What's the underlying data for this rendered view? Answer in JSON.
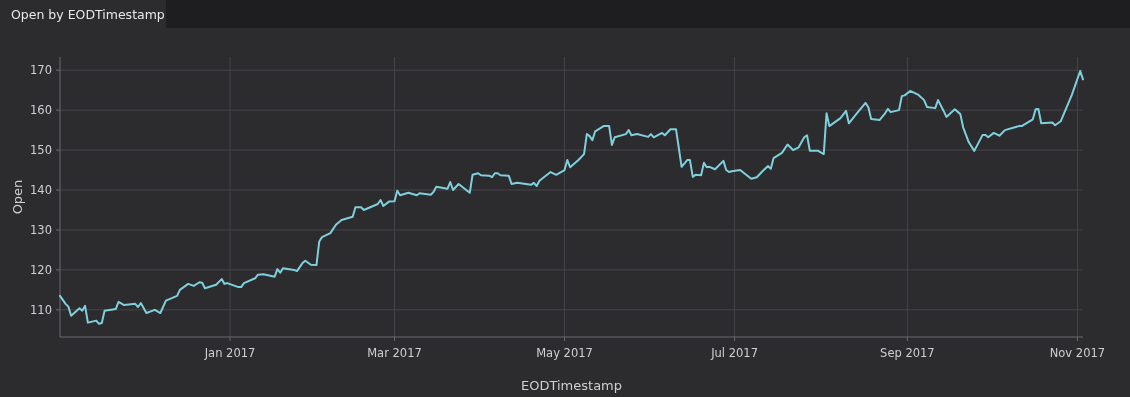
{
  "chart_data": {
    "type": "line",
    "title": "Open by EODTimestamp",
    "xlabel": "EODTimestamp",
    "ylabel": "Open",
    "color": "#7fd0dc",
    "grid": true,
    "marker": "none",
    "line_style": "solid",
    "xlim": [
      "2016-11-01",
      "2017-11-03"
    ],
    "ylim": [
      103.2,
      173.3
    ],
    "xticks": [
      {
        "value": "2017-01-01",
        "label": "Jan 2017"
      },
      {
        "value": "2017-03-01",
        "label": "Mar 2017"
      },
      {
        "value": "2017-05-01",
        "label": "May 2017"
      },
      {
        "value": "2017-07-01",
        "label": "Jul 2017"
      },
      {
        "value": "2017-09-01",
        "label": "Sep 2017"
      },
      {
        "value": "2017-11-01",
        "label": "Nov 2017"
      }
    ],
    "yticks": [
      110,
      120,
      130,
      140,
      150,
      160,
      170
    ],
    "x": [
      "2016-11-01",
      "2016-11-03",
      "2016-11-04",
      "2016-11-05",
      "2016-11-08",
      "2016-11-09",
      "2016-11-10",
      "2016-11-11",
      "2016-11-14",
      "2016-11-15",
      "2016-11-16",
      "2016-11-17",
      "2016-11-21",
      "2016-11-22",
      "2016-11-24",
      "2016-11-28",
      "2016-11-29",
      "2016-11-30",
      "2016-12-02",
      "2016-12-05",
      "2016-12-07",
      "2016-12-09",
      "2016-12-13",
      "2016-12-14",
      "2016-12-17",
      "2016-12-19",
      "2016-12-21",
      "2016-12-22",
      "2016-12-23",
      "2016-12-27",
      "2016-12-29",
      "2016-12-30",
      "2016-12-31",
      "2017-01-04",
      "2017-01-05",
      "2017-01-06",
      "2017-01-10",
      "2017-01-11",
      "2017-01-13",
      "2017-01-17",
      "2017-01-18",
      "2017-01-19",
      "2017-01-20",
      "2017-01-24",
      "2017-01-25",
      "2017-01-27",
      "2017-01-28",
      "2017-01-30",
      "2017-02-01",
      "2017-02-02",
      "2017-02-03",
      "2017-02-06",
      "2017-02-08",
      "2017-02-10",
      "2017-02-14",
      "2017-02-15",
      "2017-02-17",
      "2017-02-18",
      "2017-02-23",
      "2017-02-24",
      "2017-02-25",
      "2017-02-27",
      "2017-03-01",
      "2017-03-02",
      "2017-03-03",
      "2017-03-06",
      "2017-03-09",
      "2017-03-10",
      "2017-03-14",
      "2017-03-15",
      "2017-03-16",
      "2017-03-20",
      "2017-03-21",
      "2017-03-22",
      "2017-03-24",
      "2017-03-28",
      "2017-03-29",
      "2017-03-31",
      "2017-04-01",
      "2017-04-04",
      "2017-04-05",
      "2017-04-06",
      "2017-04-07",
      "2017-04-08",
      "2017-04-11",
      "2017-04-12",
      "2017-04-14",
      "2017-04-19",
      "2017-04-20",
      "2017-04-21",
      "2017-04-22",
      "2017-04-26",
      "2017-04-28",
      "2017-05-01",
      "2017-05-02",
      "2017-05-03",
      "2017-05-06",
      "2017-05-08",
      "2017-05-09",
      "2017-05-10",
      "2017-05-11",
      "2017-05-12",
      "2017-05-15",
      "2017-05-17",
      "2017-05-18",
      "2017-05-19",
      "2017-05-23",
      "2017-05-24",
      "2017-05-25",
      "2017-05-27",
      "2017-05-31",
      "2017-06-01",
      "2017-06-02",
      "2017-06-05",
      "2017-06-06",
      "2017-06-08",
      "2017-06-10",
      "2017-06-12",
      "2017-06-14",
      "2017-06-15",
      "2017-06-16",
      "2017-06-17",
      "2017-06-19",
      "2017-06-20",
      "2017-06-21",
      "2017-06-22",
      "2017-06-24",
      "2017-06-27",
      "2017-06-28",
      "2017-06-29",
      "2017-06-30",
      "2017-07-03",
      "2017-07-07",
      "2017-07-09",
      "2017-07-11",
      "2017-07-13",
      "2017-07-14",
      "2017-07-15",
      "2017-07-18",
      "2017-07-20",
      "2017-07-22",
      "2017-07-24",
      "2017-07-26",
      "2017-07-27",
      "2017-07-28",
      "2017-07-31",
      "2017-08-02",
      "2017-08-03",
      "2017-08-04",
      "2017-08-08",
      "2017-08-10",
      "2017-08-11",
      "2017-08-14",
      "2017-08-17",
      "2017-08-18",
      "2017-08-19",
      "2017-08-22",
      "2017-08-24",
      "2017-08-25",
      "2017-08-26",
      "2017-08-29",
      "2017-08-30",
      "2017-08-31",
      "2017-09-02",
      "2017-09-05",
      "2017-09-07",
      "2017-09-08",
      "2017-09-11",
      "2017-09-12",
      "2017-09-14",
      "2017-09-15",
      "2017-09-18",
      "2017-09-20",
      "2017-09-21",
      "2017-09-23",
      "2017-09-25",
      "2017-09-28",
      "2017-09-29",
      "2017-09-30",
      "2017-10-02",
      "2017-10-04",
      "2017-10-06",
      "2017-10-11",
      "2017-10-12",
      "2017-10-16",
      "2017-10-17",
      "2017-10-18",
      "2017-10-19",
      "2017-10-23",
      "2017-10-24",
      "2017-10-26",
      "2017-10-30",
      "2017-11-02",
      "2017-11-03"
    ],
    "values": [
      113.5,
      111.5,
      110.8,
      108.5,
      110.4,
      109.8,
      111,
      106.8,
      107.3,
      106.5,
      106.7,
      109.8,
      110.2,
      112,
      111.2,
      111.5,
      110.7,
      111.7,
      109.2,
      110,
      109.2,
      112.3,
      113.5,
      115,
      116.5,
      116,
      116.9,
      116.8,
      115.4,
      116.3,
      117.7,
      116.5,
      116.7,
      115.7,
      115.7,
      116.7,
      117.9,
      118.8,
      118.9,
      118.3,
      120.2,
      119.3,
      120.4,
      120,
      119.7,
      121.7,
      122.3,
      121.3,
      121.2,
      127.1,
      128.2,
      129.2,
      131.3,
      132.5,
      133.3,
      135.7,
      135.7,
      135,
      136.5,
      137.5,
      136,
      137.1,
      137.2,
      139.8,
      138.7,
      139.3,
      138.7,
      139.2,
      138.8,
      139.5,
      140.8,
      140.3,
      142,
      140,
      141.5,
      139.3,
      143.8,
      144.2,
      143.7,
      143.6,
      143.2,
      144.2,
      144.2,
      143.7,
      143.6,
      141.5,
      141.8,
      141.3,
      141.8,
      141,
      142.3,
      144.5,
      143.8,
      145,
      147.5,
      145.7,
      147.5,
      149,
      154,
      153.5,
      152.5,
      154.7,
      156,
      156,
      151.3,
      153.2,
      154,
      155,
      153.7,
      154,
      153.3,
      154,
      153.2,
      154.3,
      153.7,
      155.2,
      155.2,
      145.8,
      147.5,
      147.5,
      143.3,
      143.8,
      143.7,
      146.8,
      145.7,
      145.8,
      145.2,
      147.3,
      145,
      144.5,
      144.7,
      145,
      142.8,
      143.2,
      144.7,
      146,
      145.3,
      148,
      149.3,
      151.4,
      150,
      150.7,
      153.2,
      153.7,
      149.8,
      149.8,
      149,
      159.2,
      156,
      158,
      159.8,
      156.7,
      159.3,
      161.8,
      160.7,
      157.8,
      157.5,
      159.2,
      160.3,
      159.5,
      160,
      163.5,
      163.7,
      164.8,
      163.8,
      162.5,
      160.8,
      160.5,
      162.5,
      159.8,
      158.3,
      160.2,
      159,
      155.7,
      152,
      149.8,
      153.8,
      153.8,
      153.2,
      154.3,
      153.6,
      155,
      156,
      156,
      157.7,
      160.2,
      160.3,
      156.7,
      156.9,
      156.2,
      157.2,
      163.8,
      169.8,
      167.7
    ]
  }
}
